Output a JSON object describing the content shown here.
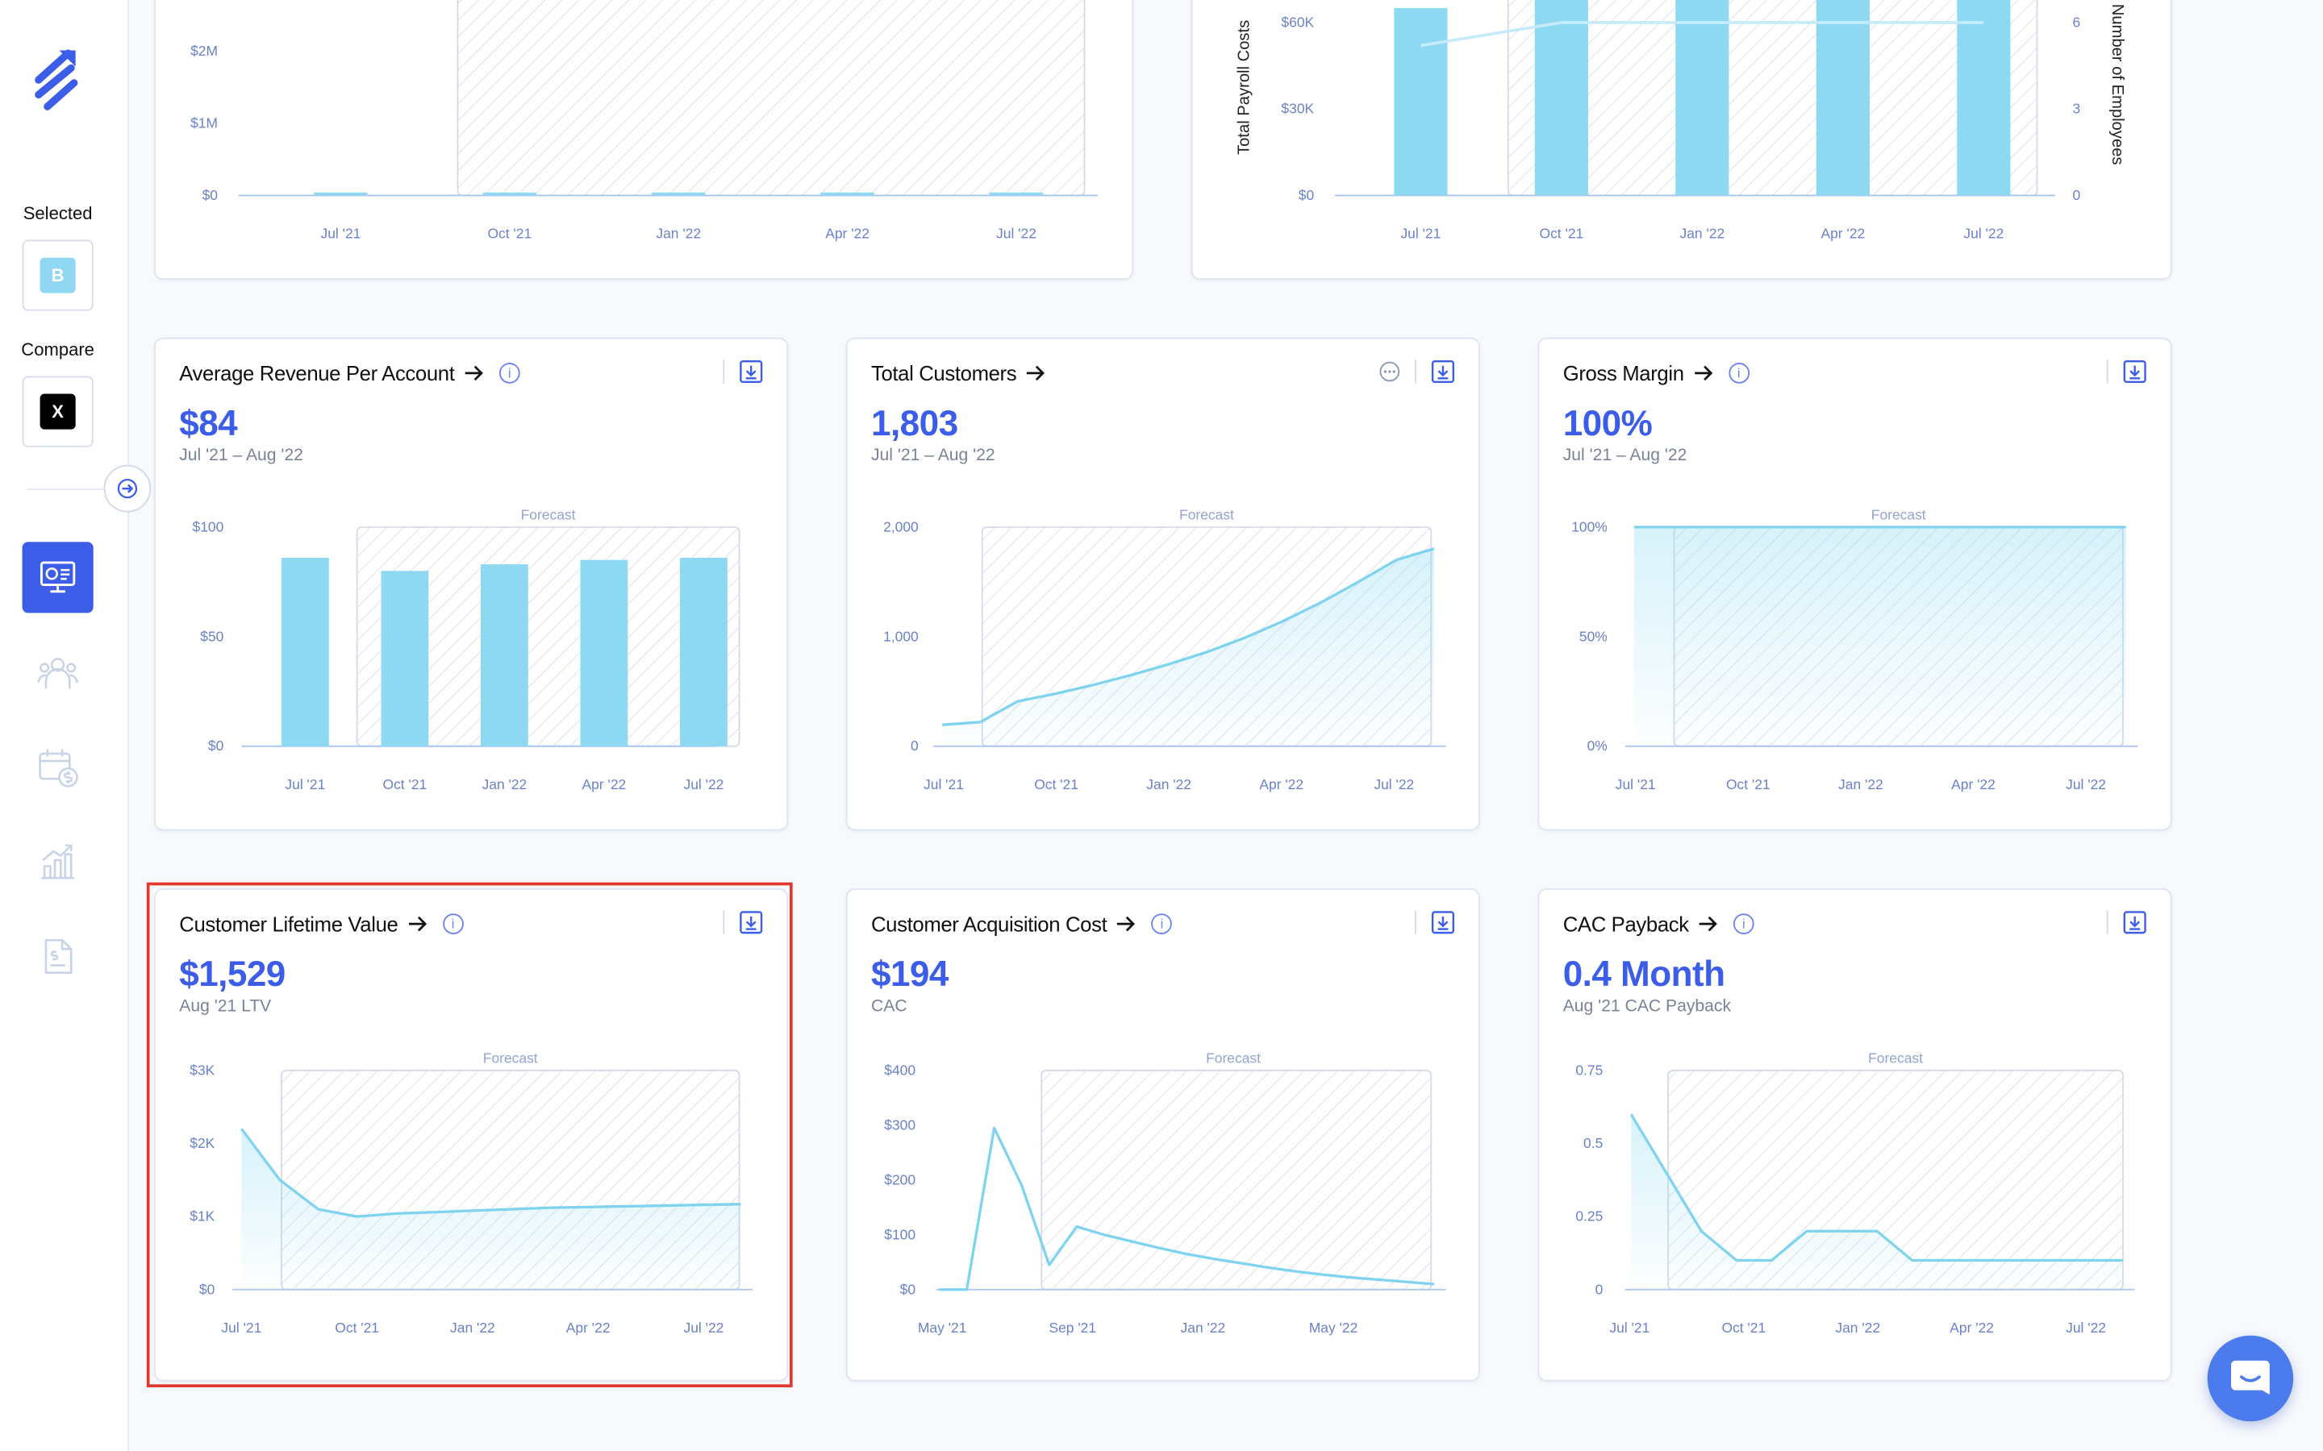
{
  "sidebar": {
    "selected_label": "Selected",
    "selected_chip": "B",
    "compare_label": "Compare",
    "compare_chip": "X",
    "colors": {
      "selected_chip": "#8fd7f2",
      "compare_chip": "#000000",
      "accent": "#3b5de7"
    }
  },
  "top_cards": {
    "revenue": {
      "chart_data": {
        "type": "bar",
        "categories": [
          "Jul '21",
          "Oct '21",
          "Jan '22",
          "Apr '22",
          "Jul '22"
        ],
        "values": [
          0.04,
          0.04,
          0.04,
          0.04,
          0.04
        ],
        "ytick_labels": [
          "$0",
          "$1M",
          "$2M"
        ],
        "ylim": [
          0,
          3
        ],
        "forecast_from": "Oct '21"
      }
    },
    "payroll": {
      "chart_data": {
        "type": "bar",
        "categories": [
          "Jul '21",
          "Oct '21",
          "Jan '22",
          "Apr '22",
          "Jul '22"
        ],
        "ylabel": "Total Payroll Costs",
        "y2label": "Number of Employees",
        "ytick_labels": [
          "$0",
          "$30K",
          "$60K"
        ],
        "y2tick_labels": [
          "0",
          "3",
          "6"
        ],
        "series": [
          {
            "name": "Total Payroll Costs",
            "type": "bar",
            "values": [
              65,
              72,
              72,
              72,
              72
            ]
          },
          {
            "name": "Number of Employees",
            "type": "line",
            "values": [
              5.2,
              6,
              6,
              6,
              6
            ]
          }
        ],
        "ylim": [
          0,
          75
        ],
        "y2lim": [
          0,
          7.5
        ]
      }
    }
  },
  "cards": [
    {
      "id": "arpa",
      "title": "Average Revenue Per Account",
      "value": "$84",
      "sub": "Jul '21 – Aug '22",
      "has_info": true,
      "has_more": false,
      "chart_data": {
        "type": "bar",
        "title": "Average Revenue Per Account",
        "categories": [
          "Jul '21",
          "Oct '21",
          "Jan '22",
          "Apr '22",
          "Jul '22"
        ],
        "values": [
          86,
          80,
          83,
          85,
          86
        ],
        "ytick_labels": [
          "$0",
          "$50",
          "$100"
        ],
        "ylim": [
          0,
          100
        ],
        "forecast_label": "Forecast"
      }
    },
    {
      "id": "customers",
      "title": "Total Customers",
      "value": "1,803",
      "sub": "Jul '21 – Aug '22",
      "has_info": false,
      "has_more": true,
      "chart_data": {
        "type": "area",
        "title": "Total Customers",
        "tick_labels": [
          "Jul '21",
          "Oct '21",
          "Jan '22",
          "Apr '22",
          "Jul '22"
        ],
        "x": [
          0,
          1,
          2,
          3,
          4,
          5,
          6,
          7,
          8,
          9,
          10,
          11,
          12,
          13
        ],
        "values": [
          195,
          220,
          410,
          480,
          560,
          650,
          750,
          860,
          990,
          1140,
          1310,
          1500,
          1700,
          1803
        ],
        "ytick_labels": [
          "0",
          "1,000",
          "2,000"
        ],
        "ylim": [
          0,
          2000
        ],
        "forecast_label": "Forecast"
      }
    },
    {
      "id": "gross_margin",
      "title": "Gross Margin",
      "value": "100%",
      "sub": "Jul '21 – Aug '22",
      "has_info": true,
      "has_more": false,
      "chart_data": {
        "type": "area",
        "title": "Gross Margin",
        "tick_labels": [
          "Jul '21",
          "Oct '21",
          "Jan '22",
          "Apr '22",
          "Jul '22"
        ],
        "x": [
          0,
          1,
          2,
          3,
          4,
          5,
          6,
          7,
          8,
          9,
          10,
          11,
          12,
          13
        ],
        "values": [
          100,
          100,
          100,
          100,
          100,
          100,
          100,
          100,
          100,
          100,
          100,
          100,
          100,
          100
        ],
        "ytick_labels": [
          "0%",
          "50%",
          "100%"
        ],
        "ylim": [
          0,
          100
        ],
        "forecast_label": "Forecast"
      }
    },
    {
      "id": "ltv",
      "title": "Customer Lifetime Value",
      "value": "$1,529",
      "sub": "Aug '21 LTV",
      "has_info": true,
      "has_more": false,
      "chart_data": {
        "type": "area",
        "title": "Customer Lifetime Value",
        "tick_labels": [
          "Jul '21",
          "Oct '21",
          "Jan '22",
          "Apr '22",
          "Jul '22"
        ],
        "x": [
          0,
          1,
          2,
          3,
          4,
          5,
          6,
          7,
          8,
          9,
          10,
          11,
          12,
          13
        ],
        "values": [
          2200,
          1500,
          1100,
          1000,
          1040,
          1060,
          1080,
          1100,
          1120,
          1130,
          1140,
          1150,
          1160,
          1170
        ],
        "ytick_labels": [
          "$0",
          "$1K",
          "$2K",
          "$3K"
        ],
        "ylim": [
          0,
          3000
        ],
        "forecast_label": "Forecast"
      }
    },
    {
      "id": "cac",
      "title": "Customer Acquisition Cost",
      "value": "$194",
      "sub": "CAC",
      "has_info": true,
      "has_more": false,
      "chart_data": {
        "type": "line",
        "title": "Customer Acquisition Cost",
        "tick_labels": [
          "May '21",
          "Sep '21",
          "Jan '22",
          "May '22"
        ],
        "x": [
          0,
          1,
          2,
          3,
          4,
          5,
          6,
          7,
          8,
          9,
          10,
          11,
          12,
          13,
          14,
          15,
          16,
          17,
          18
        ],
        "values": [
          0,
          0,
          295,
          190,
          45,
          115,
          100,
          88,
          76,
          65,
          56,
          48,
          40,
          33,
          27,
          22,
          18,
          14,
          10
        ],
        "ytick_labels": [
          "$0",
          "$100",
          "$200",
          "$300",
          "$400"
        ],
        "ylim": [
          0,
          400
        ],
        "forecast_label": "Forecast"
      }
    },
    {
      "id": "cac_payback",
      "title": "CAC Payback",
      "value": "0.4 Month",
      "sub": "Aug '21 CAC Payback",
      "has_info": true,
      "has_more": false,
      "chart_data": {
        "type": "area",
        "title": "CAC Payback",
        "tick_labels": [
          "Jul '21",
          "Oct '21",
          "Jan '22",
          "Apr '22",
          "Jul '22"
        ],
        "x": [
          0,
          1,
          2,
          3,
          4,
          5,
          6,
          7,
          8,
          9,
          10,
          11,
          12,
          13,
          14
        ],
        "values": [
          0.6,
          0.4,
          0.2,
          0.1,
          0.1,
          0.2,
          0.2,
          0.2,
          0.1,
          0.1,
          0.1,
          0.1,
          0.1,
          0.1,
          0.1
        ],
        "ytick_labels": [
          "0",
          "0.25",
          "0.5",
          "0.75"
        ],
        "ylim": [
          0,
          0.75
        ],
        "forecast_label": "Forecast"
      }
    }
  ]
}
